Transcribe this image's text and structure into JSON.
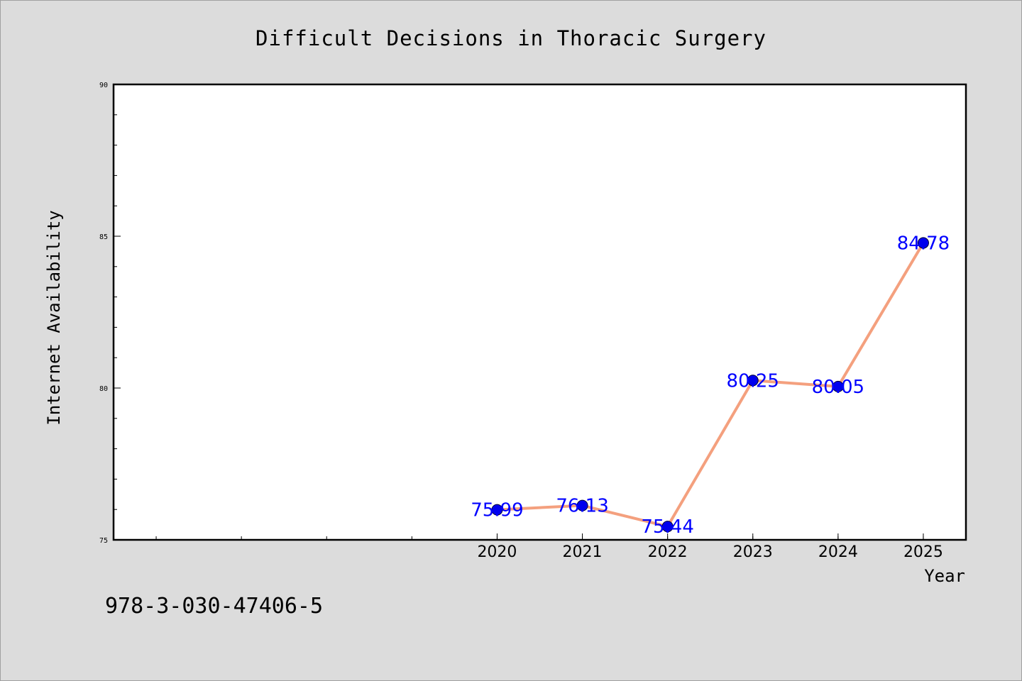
{
  "figure": {
    "identifier": "978-3-030-47406-5"
  },
  "chart_data": {
    "type": "line",
    "title": "Difficult Decisions in Thoracic Surgery",
    "xlabel": "Year",
    "ylabel": "Internet Availability",
    "x": [
      "2020",
      "2021",
      "2022",
      "2023",
      "2024",
      "2025"
    ],
    "series": [
      {
        "values": [
          75.99,
          76.13,
          75.44,
          80.25,
          80.05,
          84.78
        ],
        "labels": [
          "75.99",
          "76.13",
          "75.44",
          "80.25",
          "80.05",
          "84.78"
        ]
      }
    ],
    "ylim": [
      75,
      90
    ],
    "yticks": [
      "75",
      "80",
      "85",
      "90"
    ],
    "x_index_range": [
      -4.5,
      5.5
    ],
    "grid": false,
    "legend": "none",
    "colors": {
      "line": "#f4a07e",
      "marker": "#0000ee",
      "label": "#0000ff",
      "background": "#dcdcdc",
      "plot_background": "#ffffff"
    }
  }
}
